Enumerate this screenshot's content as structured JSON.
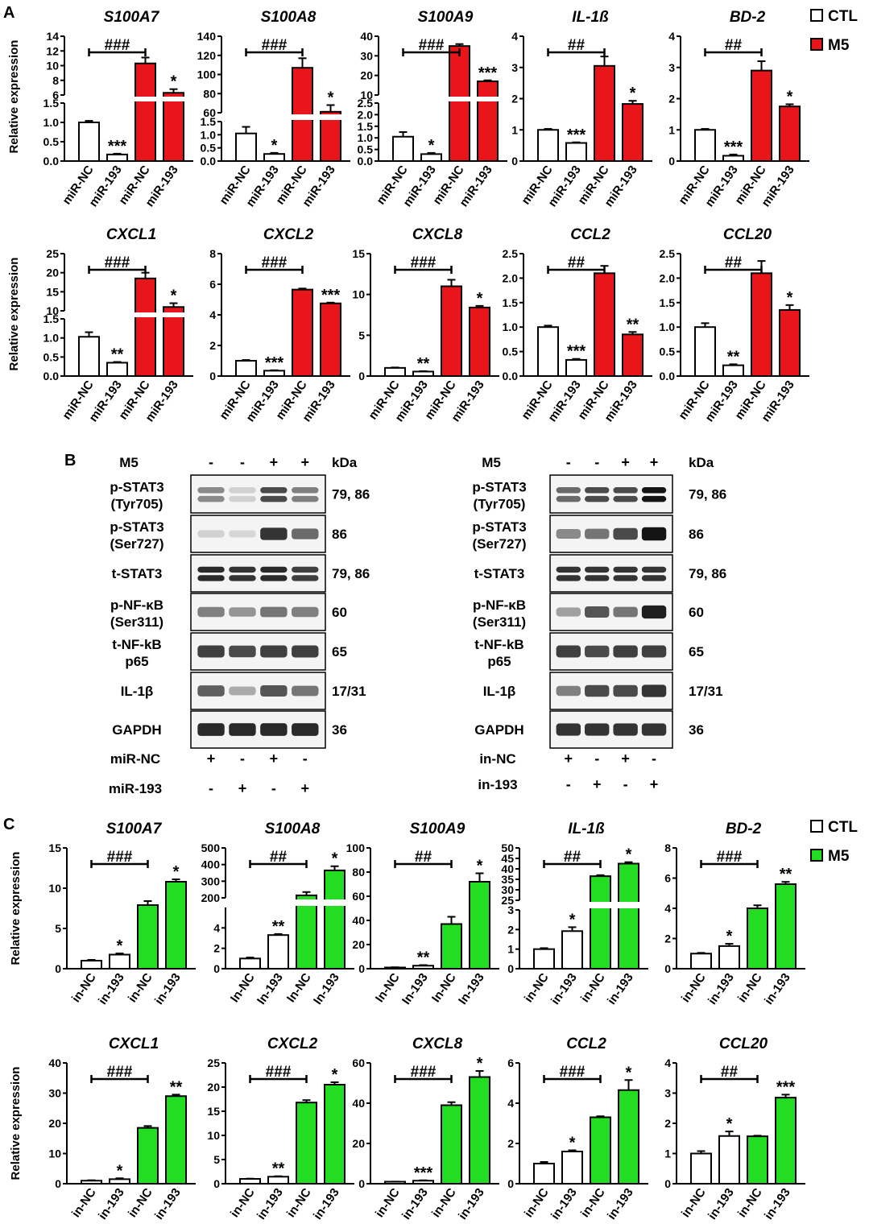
{
  "panels": {
    "A": {
      "letter": "A",
      "ylabel": "Relative expression",
      "legend": [
        {
          "label": "CTL",
          "color": "#ffffff"
        },
        {
          "label": "M5",
          "color": "#e8161b"
        }
      ],
      "treat_color": "#e8161b"
    },
    "B": {
      "letter": "B"
    },
    "C": {
      "letter": "C",
      "ylabel": "Relative expression",
      "legend": [
        {
          "label": "CTL",
          "color": "#ffffff"
        },
        {
          "label": "M5",
          "color": "#22dd22"
        }
      ],
      "treat_color": "#22dd22"
    }
  },
  "chart_data": [
    {
      "panel": "A",
      "type": "bar",
      "title": "S100A7",
      "categories": [
        "miR-NC",
        "miR-193",
        "miR-NC",
        "miR-193"
      ],
      "values": [
        1.0,
        0.17,
        10.3,
        6.3
      ],
      "errors": [
        0.04,
        0.02,
        0.8,
        0.5
      ],
      "marks": [
        "",
        "***",
        "",
        "*"
      ],
      "hash": "###",
      "hash_span": [
        0,
        2
      ],
      "broken_axis": true,
      "ylim_low": [
        0,
        1.5
      ],
      "ylim_high": [
        6,
        14
      ],
      "ticks_low": [
        "0.0",
        "0.5",
        "1.0",
        "1.5"
      ],
      "ticks_high": [
        "6",
        "8",
        "10",
        "12",
        "14"
      ]
    },
    {
      "panel": "A",
      "type": "bar",
      "title": "S100A8",
      "categories": [
        "miR-NC",
        "miR-193",
        "miR-NC",
        "miR-193"
      ],
      "values": [
        1.05,
        0.27,
        107,
        61
      ],
      "errors": [
        0.25,
        0.04,
        10,
        7
      ],
      "marks": [
        "",
        "*",
        "",
        "*"
      ],
      "hash": "###",
      "hash_span": [
        0,
        2
      ],
      "broken_axis": true,
      "ylim_low": [
        0,
        1.5
      ],
      "ylim_high": [
        60,
        140
      ],
      "ticks_low": [
        "0.0",
        "0.5",
        "1.0",
        "1.5"
      ],
      "ticks_high": [
        "60",
        "80",
        "100",
        "120",
        "140"
      ]
    },
    {
      "panel": "A",
      "type": "bar",
      "title": "S100A9",
      "categories": [
        "miR-NC",
        "miR-193",
        "miR-NC",
        "miR-193"
      ],
      "values": [
        1.05,
        0.3,
        35,
        17
      ],
      "errors": [
        0.2,
        0.05,
        1,
        0.5
      ],
      "marks": [
        "",
        "*",
        "",
        "***"
      ],
      "hash": "###",
      "hash_span": [
        0,
        2
      ],
      "broken_axis": true,
      "ylim_low": [
        0,
        2.5
      ],
      "ylim_high": [
        10,
        40
      ],
      "ticks_low": [
        "0.0",
        "0.5",
        "1.0",
        "1.5",
        "2.0",
        "2.5"
      ],
      "ticks_high": [
        "10",
        "20",
        "30",
        "40"
      ]
    },
    {
      "panel": "A",
      "type": "bar",
      "title": "IL-1ß",
      "categories": [
        "miR-NC",
        "miR-193",
        "miR-NC",
        "miR-193"
      ],
      "values": [
        1.0,
        0.58,
        3.05,
        1.83
      ],
      "errors": [
        0.03,
        0.02,
        0.3,
        0.1
      ],
      "marks": [
        "",
        "***",
        "",
        "*"
      ],
      "hash": "##",
      "hash_span": [
        0,
        2
      ],
      "broken_axis": false,
      "ylim": [
        0,
        4
      ],
      "ticks": [
        "0",
        "1",
        "2",
        "3",
        "4"
      ]
    },
    {
      "panel": "A",
      "type": "bar",
      "title": "BD-2",
      "categories": [
        "miR-NC",
        "miR-193",
        "miR-NC",
        "miR-193"
      ],
      "values": [
        1.0,
        0.17,
        2.9,
        1.75
      ],
      "errors": [
        0.03,
        0.04,
        0.3,
        0.07
      ],
      "marks": [
        "",
        "***",
        "",
        "*"
      ],
      "hash": "##",
      "hash_span": [
        0,
        2
      ],
      "broken_axis": false,
      "ylim": [
        0,
        4
      ],
      "ticks": [
        "0",
        "1",
        "2",
        "3",
        "4"
      ]
    },
    {
      "panel": "A",
      "type": "bar",
      "title": "CXCL1",
      "categories": [
        "miR-NC",
        "miR-193",
        "miR-NC",
        "miR-193"
      ],
      "values": [
        1.03,
        0.35,
        18.5,
        11
      ],
      "errors": [
        0.12,
        0.02,
        1.5,
        1
      ],
      "marks": [
        "",
        "**",
        "",
        "*"
      ],
      "hash": "###",
      "hash_span": [
        0,
        2
      ],
      "broken_axis": true,
      "ylim_low": [
        0,
        1.5
      ],
      "ylim_high": [
        10,
        25
      ],
      "ticks_low": [
        "0.0",
        "0.5",
        "1.0",
        "1.5"
      ],
      "ticks_high": [
        "10",
        "15",
        "20",
        "25"
      ]
    },
    {
      "panel": "A",
      "type": "bar",
      "title": "CXCL2",
      "categories": [
        "miR-NC",
        "miR-193",
        "miR-NC",
        "miR-193"
      ],
      "values": [
        1.0,
        0.35,
        5.65,
        4.75
      ],
      "errors": [
        0.05,
        0.03,
        0.07,
        0.05
      ],
      "marks": [
        "",
        "***",
        "",
        "***"
      ],
      "hash": "###",
      "hash_span": [
        0,
        2
      ],
      "broken_axis": false,
      "ylim": [
        0,
        8
      ],
      "ticks": [
        "0",
        "2",
        "4",
        "6",
        "8"
      ]
    },
    {
      "panel": "A",
      "type": "bar",
      "title": "CXCL8",
      "categories": [
        "miR-NC",
        "miR-193",
        "miR-NC",
        "miR-193"
      ],
      "values": [
        1.0,
        0.55,
        11,
        8.4
      ],
      "errors": [
        0.05,
        0.05,
        0.8,
        0.2
      ],
      "marks": [
        "",
        "**",
        "",
        "*"
      ],
      "hash": "###",
      "hash_span": [
        0,
        2
      ],
      "broken_axis": false,
      "ylim": [
        0,
        15
      ],
      "ticks": [
        "0",
        "5",
        "10",
        "15"
      ]
    },
    {
      "panel": "A",
      "type": "bar",
      "title": "CCL2",
      "categories": [
        "miR-NC",
        "miR-193",
        "miR-NC",
        "miR-193"
      ],
      "values": [
        1.0,
        0.33,
        2.1,
        0.85
      ],
      "errors": [
        0.03,
        0.02,
        0.15,
        0.05
      ],
      "marks": [
        "",
        "***",
        "",
        "**"
      ],
      "hash": "##",
      "hash_span": [
        0,
        2
      ],
      "broken_axis": false,
      "ylim": [
        0,
        2.5
      ],
      "ticks": [
        "0.0",
        "0.5",
        "1.0",
        "1.5",
        "2.0",
        "2.5"
      ]
    },
    {
      "panel": "A",
      "type": "bar",
      "title": "CCL20",
      "categories": [
        "miR-NC",
        "miR-193",
        "miR-NC",
        "miR-193"
      ],
      "values": [
        1.0,
        0.22,
        2.1,
        1.35
      ],
      "errors": [
        0.08,
        0.02,
        0.25,
        0.1
      ],
      "marks": [
        "",
        "**",
        "",
        "*"
      ],
      "hash": "##",
      "hash_span": [
        0,
        2
      ],
      "broken_axis": false,
      "ylim": [
        0,
        2.5
      ],
      "ticks": [
        "0.0",
        "0.5",
        "1.0",
        "1.5",
        "2.0",
        "2.5"
      ]
    },
    {
      "panel": "C",
      "type": "bar",
      "title": "S100A7",
      "categories": [
        "in-NC",
        "in-193",
        "in-NC",
        "in-193"
      ],
      "values": [
        1.0,
        1.75,
        7.9,
        10.8
      ],
      "errors": [
        0.1,
        0.15,
        0.5,
        0.3
      ],
      "marks": [
        "",
        "*",
        "",
        "*"
      ],
      "hash": "###",
      "hash_span": [
        0,
        2
      ],
      "broken_axis": false,
      "ylim": [
        0,
        15
      ],
      "ticks": [
        "0",
        "5",
        "10",
        "15"
      ]
    },
    {
      "panel": "C",
      "type": "bar",
      "title": "S100A8",
      "categories": [
        "In-NC",
        "In-193",
        "In-NC",
        "In-193"
      ],
      "values": [
        1.0,
        3.3,
        215,
        365
      ],
      "errors": [
        0.1,
        0.1,
        20,
        25
      ],
      "marks": [
        "",
        "**",
        "",
        "*"
      ],
      "hash": "##",
      "hash_span": [
        0,
        2
      ],
      "broken_axis": true,
      "ylim_low": [
        0,
        6
      ],
      "ylim_high": [
        200,
        500
      ],
      "ticks_low": [
        "0",
        "2",
        "4"
      ],
      "ticks_high": [
        "200",
        "300",
        "400",
        "500"
      ]
    },
    {
      "panel": "C",
      "type": "bar",
      "title": "S100A9",
      "categories": [
        "In-NC",
        "In-193",
        "In-NC",
        "In-193"
      ],
      "values": [
        1.0,
        2.5,
        37,
        72
      ],
      "errors": [
        0.2,
        0.5,
        6,
        7
      ],
      "marks": [
        "",
        "**",
        "",
        "*"
      ],
      "hash": "##",
      "hash_span": [
        0,
        2
      ],
      "broken_axis": false,
      "ylim": [
        0,
        100
      ],
      "ticks": [
        "0",
        "20",
        "40",
        "60",
        "80",
        "100"
      ]
    },
    {
      "panel": "C",
      "type": "bar",
      "title": "IL-1ß",
      "categories": [
        "in-NC",
        "in-193",
        "in-NC",
        "in-193"
      ],
      "values": [
        1.0,
        1.92,
        36.5,
        42.5
      ],
      "errors": [
        0.05,
        0.2,
        0.5,
        0.7
      ],
      "marks": [
        "",
        "*",
        "",
        "*"
      ],
      "hash": "##",
      "hash_span": [
        0,
        2
      ],
      "broken_axis": true,
      "ylim_low": [
        0,
        3
      ],
      "ylim_high": [
        25,
        50
      ],
      "ticks_low": [
        "0",
        "1",
        "2",
        "3"
      ],
      "ticks_high": [
        "25",
        "30",
        "35",
        "40",
        "45",
        "50"
      ]
    },
    {
      "panel": "C",
      "type": "bar",
      "title": "BD-2",
      "categories": [
        "in-NC",
        "in-193",
        "in-NC",
        "in-193"
      ],
      "values": [
        1.0,
        1.5,
        4.0,
        5.6
      ],
      "errors": [
        0.05,
        0.15,
        0.2,
        0.15
      ],
      "marks": [
        "",
        "*",
        "",
        "**"
      ],
      "hash": "###",
      "hash_span": [
        0,
        2
      ],
      "broken_axis": false,
      "ylim": [
        0,
        8
      ],
      "ticks": [
        "0",
        "2",
        "4",
        "6",
        "8"
      ]
    },
    {
      "panel": "C",
      "type": "bar",
      "title": "CXCL1",
      "categories": [
        "in-NC",
        "in-193",
        "in-NC",
        "in-193"
      ],
      "values": [
        1.0,
        1.5,
        18.5,
        29
      ],
      "errors": [
        0.15,
        0.3,
        0.6,
        0.5
      ],
      "marks": [
        "",
        "*",
        "",
        "**"
      ],
      "hash": "###",
      "hash_span": [
        0,
        2
      ],
      "broken_axis": false,
      "ylim": [
        0,
        40
      ],
      "ticks": [
        "0",
        "10",
        "20",
        "30",
        "40"
      ]
    },
    {
      "panel": "C",
      "type": "bar",
      "title": "CXCL2",
      "categories": [
        "in-NC",
        "in-193",
        "in-NC",
        "in-193"
      ],
      "values": [
        1.0,
        1.45,
        16.8,
        20.5
      ],
      "errors": [
        0.05,
        0.1,
        0.5,
        0.5
      ],
      "marks": [
        "",
        "**",
        "",
        "*"
      ],
      "hash": "###",
      "hash_span": [
        0,
        2
      ],
      "broken_axis": false,
      "ylim": [
        0,
        25
      ],
      "ticks": [
        "0",
        "5",
        "10",
        "15",
        "20",
        "25"
      ]
    },
    {
      "panel": "C",
      "type": "bar",
      "title": "CXCL8",
      "categories": [
        "in-NC",
        "in-193",
        "in-NC",
        "in-193"
      ],
      "values": [
        1.0,
        1.5,
        39,
        53
      ],
      "errors": [
        0.05,
        0.2,
        1.5,
        3
      ],
      "marks": [
        "",
        "***",
        "",
        "*"
      ],
      "hash": "###",
      "hash_span": [
        0,
        2
      ],
      "broken_axis": false,
      "ylim": [
        0,
        60
      ],
      "ticks": [
        "0",
        "20",
        "40",
        "60"
      ]
    },
    {
      "panel": "C",
      "type": "bar",
      "title": "CCL2",
      "categories": [
        "in-NC",
        "in-193",
        "in-NC",
        "in-193"
      ],
      "values": [
        1.0,
        1.6,
        3.3,
        4.65
      ],
      "errors": [
        0.08,
        0.06,
        0.05,
        0.5
      ],
      "marks": [
        "",
        "*",
        "",
        "*"
      ],
      "hash": "###",
      "hash_span": [
        0,
        2
      ],
      "broken_axis": false,
      "ylim": [
        0,
        6
      ],
      "ticks": [
        "0",
        "2",
        "4",
        "6"
      ]
    },
    {
      "panel": "C",
      "type": "bar",
      "title": "CCL20",
      "categories": [
        "in-NC",
        "in-193",
        "in-NC",
        "in-193"
      ],
      "values": [
        1.0,
        1.58,
        1.57,
        2.85
      ],
      "errors": [
        0.08,
        0.15,
        0.02,
        0.1
      ],
      "marks": [
        "",
        "*",
        "",
        "***"
      ],
      "hash": "##",
      "hash_span": [
        0,
        2
      ],
      "broken_axis": false,
      "ylim": [
        0,
        4
      ],
      "ticks": [
        "0",
        "1",
        "2",
        "3",
        "4"
      ]
    }
  ],
  "western_blots": [
    {
      "id": "B-left",
      "header_label": "M5",
      "header_signs": [
        "-",
        "-",
        "+",
        "+"
      ],
      "kda_label": "kDa",
      "rows": [
        {
          "label": [
            "p-STAT3",
            "(Tyr705)"
          ],
          "kda": "79, 86",
          "bands": [
            0.45,
            0.12,
            0.75,
            0.5
          ],
          "double": true
        },
        {
          "label": [
            "p-STAT3",
            "(Ser727)"
          ],
          "kda": "86",
          "bands": [
            0.12,
            0.1,
            0.85,
            0.6
          ],
          "double": false
        },
        {
          "label": [
            "t-STAT3"
          ],
          "kda": "79, 86",
          "bands": [
            0.9,
            0.85,
            0.9,
            0.8
          ],
          "double": true
        },
        {
          "label": [
            "p-NF-κB",
            "(Ser311)"
          ],
          "kda": "60",
          "bands": [
            0.5,
            0.4,
            0.55,
            0.5
          ],
          "double": false
        },
        {
          "label": [
            "t-NF-kB",
            "p65"
          ],
          "kda": "65",
          "bands": [
            0.8,
            0.75,
            0.8,
            0.8
          ],
          "double": false
        },
        {
          "label": [
            "IL-1β"
          ],
          "kda": "17/31",
          "bands": [
            0.65,
            0.3,
            0.7,
            0.55
          ],
          "double": false
        },
        {
          "label": [
            "GAPDH"
          ],
          "kda": "36",
          "bands": [
            0.9,
            0.9,
            0.9,
            0.9
          ],
          "double": false
        }
      ],
      "footer": [
        {
          "label": "miR-NC",
          "signs": [
            "+",
            "-",
            "+",
            "-"
          ]
        },
        {
          "label": "miR-193",
          "signs": [
            "-",
            "+",
            "-",
            "+"
          ]
        }
      ]
    },
    {
      "id": "B-right",
      "header_label": "M5",
      "header_signs": [
        "-",
        "-",
        "+",
        "+"
      ],
      "kda_label": "kDa",
      "rows": [
        {
          "label": [
            "p-STAT3",
            "(Tyr705)"
          ],
          "kda": "79, 86",
          "bands": [
            0.6,
            0.75,
            0.75,
            1.0
          ],
          "double": true
        },
        {
          "label": [
            "p-STAT3",
            "(Ser727)"
          ],
          "kda": "86",
          "bands": [
            0.45,
            0.55,
            0.75,
            1.0
          ],
          "double": false
        },
        {
          "label": [
            "t-STAT3"
          ],
          "kda": "79, 86",
          "bands": [
            0.85,
            0.85,
            0.85,
            0.85
          ],
          "double": true
        },
        {
          "label": [
            "p-NF-κB",
            "(Ser311)"
          ],
          "kda": "60",
          "bands": [
            0.35,
            0.7,
            0.55,
            0.95
          ],
          "double": false
        },
        {
          "label": [
            "t-NF-kB",
            "p65"
          ],
          "kda": "65",
          "bands": [
            0.8,
            0.75,
            0.8,
            0.8
          ],
          "double": false
        },
        {
          "label": [
            "IL-1β"
          ],
          "kda": "17/31",
          "bands": [
            0.5,
            0.75,
            0.75,
            0.85
          ],
          "double": false
        },
        {
          "label": [
            "GAPDH"
          ],
          "kda": "36",
          "bands": [
            0.85,
            0.85,
            0.85,
            0.85
          ],
          "double": false
        }
      ],
      "footer": [
        {
          "label": "in-NC",
          "signs": [
            "+",
            "-",
            "+",
            "-"
          ]
        },
        {
          "label": "in-193",
          "signs": [
            "-",
            "+",
            "-",
            "+"
          ]
        }
      ]
    }
  ]
}
